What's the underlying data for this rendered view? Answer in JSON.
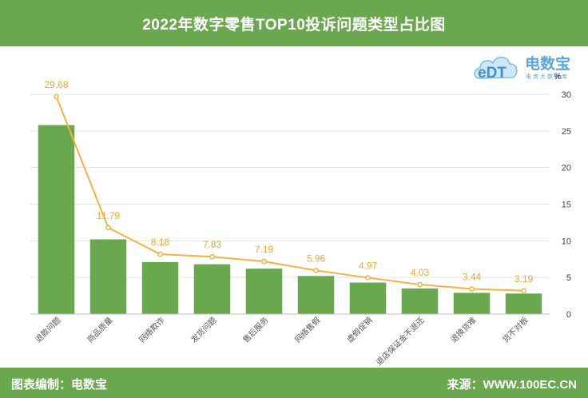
{
  "header": {
    "title": "2022年数字零售TOP10投诉问题类型占比图"
  },
  "logo": {
    "icon": "edt-cloud-logo",
    "brand": "电数宝",
    "sub": "电商大数据库"
  },
  "footer": {
    "left": "图表编制：电数宝",
    "right": "来源：WWW.100EC.CN"
  },
  "colors": {
    "bar": "#6aa84f",
    "line": "#f4b23e",
    "label": "#f0a830",
    "header_bg": "#6aa84f"
  },
  "chart_data": {
    "type": "bar",
    "categories": [
      "退款问题",
      "商品质量",
      "网络欺诈",
      "发货问题",
      "售后服务",
      "网络售假",
      "虚假促销",
      "退店保证金不退还",
      "退换货难",
      "货不对板"
    ],
    "series": [
      {
        "type": "bar",
        "values": [
          25.8,
          10.2,
          7.1,
          6.8,
          6.2,
          5.2,
          4.3,
          3.5,
          2.9,
          2.8
        ]
      },
      {
        "type": "line",
        "values": [
          29.68,
          11.79,
          8.18,
          7.83,
          7.19,
          5.96,
          4.97,
          4.03,
          3.44,
          3.19
        ],
        "data_labels": [
          "29.68",
          "11.79",
          "8.18",
          "7.83",
          "7.19",
          "5.96",
          "4.97",
          "4.03",
          "3.44",
          "3.19"
        ]
      }
    ],
    "y_axis": {
      "side": "right",
      "unit": "%",
      "ylim": [
        0,
        30
      ],
      "ticks": [
        0,
        5,
        10,
        15,
        20,
        25,
        30
      ]
    },
    "grid": true,
    "legend": false
  }
}
